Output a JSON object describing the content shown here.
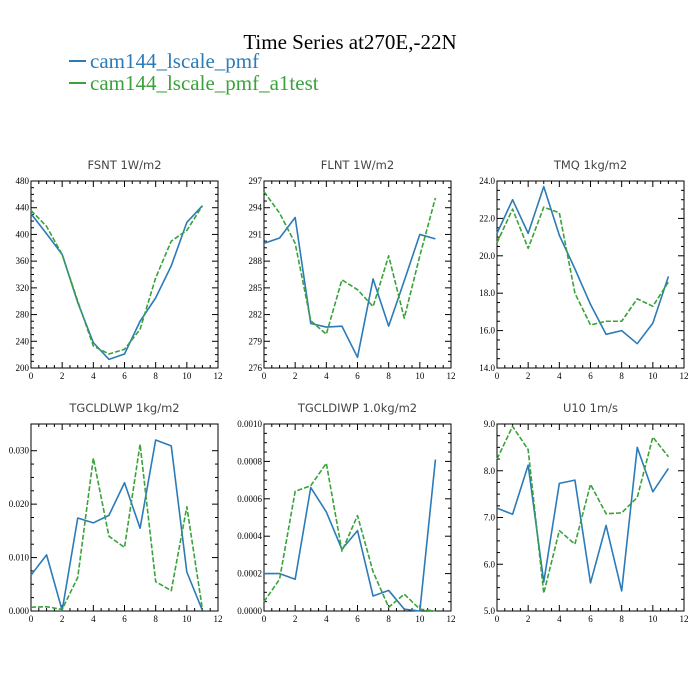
{
  "figure": {
    "title": "Time Series at270E,-22N",
    "legend": [
      {
        "label": "cam144_lscale_pmf",
        "color": "#2b7bb9",
        "dash": "solid"
      },
      {
        "label": "cam144_lscale_pmf_a1test",
        "color": "#3aa23a",
        "dash": "dashed"
      }
    ]
  },
  "chart_data": [
    {
      "type": "line",
      "title": "FSNT   1W/m2",
      "xlim": [
        0,
        12
      ],
      "ylim": [
        200,
        480
      ],
      "x_ticks": [
        0,
        2,
        4,
        6,
        8,
        10,
        12
      ],
      "y_ticks": [
        200,
        240,
        280,
        320,
        360,
        400,
        440,
        480
      ],
      "y_tick_labels": [
        "200",
        "240",
        "280",
        "320",
        "360",
        "400",
        "440",
        "480"
      ],
      "x": [
        0,
        1,
        2,
        3,
        4,
        5,
        6,
        7,
        8,
        9,
        10,
        11
      ],
      "series": [
        {
          "name": "cam144_lscale_pmf",
          "values": [
            431,
            401,
            370,
            298,
            238,
            213,
            221,
            270,
            305,
            353,
            418,
            443
          ]
        },
        {
          "name": "cam144_lscale_pmf_a1test",
          "values": [
            436,
            412,
            370,
            300,
            233,
            221,
            228,
            258,
            335,
            390,
            406,
            443
          ]
        }
      ]
    },
    {
      "type": "line",
      "title": "FLNT   1W/m2",
      "xlim": [
        0,
        12
      ],
      "ylim": [
        276,
        297
      ],
      "x_ticks": [
        0,
        2,
        4,
        6,
        8,
        10,
        12
      ],
      "y_ticks": [
        276,
        279,
        282,
        285,
        288,
        291,
        294,
        297
      ],
      "y_tick_labels": [
        "276",
        "279",
        "282",
        "285",
        "288",
        "291",
        "294",
        "297"
      ],
      "x": [
        0,
        1,
        2,
        3,
        4,
        5,
        6,
        7,
        8,
        9,
        10,
        11
      ],
      "series": [
        {
          "name": "cam144_lscale_pmf",
          "values": [
            290.0,
            290.6,
            292.9,
            281.0,
            280.6,
            280.7,
            277.2,
            286.0,
            280.7,
            285.8,
            291.0,
            290.5
          ]
        },
        {
          "name": "cam144_lscale_pmf_a1test",
          "values": [
            295.8,
            293.4,
            290.0,
            281.3,
            279.8,
            285.9,
            284.8,
            282.9,
            288.6,
            281.6,
            288.6,
            295.1
          ]
        }
      ]
    },
    {
      "type": "line",
      "title": "TMQ   1kg/m2",
      "xlim": [
        0,
        12
      ],
      "ylim": [
        14.0,
        24.0
      ],
      "x_ticks": [
        0,
        2,
        4,
        6,
        8,
        10,
        12
      ],
      "y_ticks": [
        14,
        16,
        18,
        20,
        22,
        24
      ],
      "y_tick_labels": [
        "14.0",
        "16.0",
        "18.0",
        "20.0",
        "22.0",
        "24.0"
      ],
      "x": [
        0,
        1,
        2,
        3,
        4,
        5,
        6,
        7,
        8,
        9,
        10,
        11
      ],
      "series": [
        {
          "name": "cam144_lscale_pmf",
          "values": [
            21.2,
            23.0,
            21.2,
            23.7,
            21.1,
            19.3,
            17.4,
            15.8,
            16.0,
            15.3,
            16.4,
            18.9
          ]
        },
        {
          "name": "cam144_lscale_pmf_a1test",
          "values": [
            20.7,
            22.5,
            20.4,
            22.6,
            22.3,
            18.0,
            16.3,
            16.5,
            16.5,
            17.7,
            17.3,
            18.6
          ]
        }
      ]
    },
    {
      "type": "line",
      "title": "TGCLDLWP   1kg/m2",
      "xlim": [
        0,
        12
      ],
      "ylim": [
        0,
        0.035
      ],
      "x_ticks": [
        0,
        2,
        4,
        6,
        8,
        10,
        12
      ],
      "y_ticks": [
        0,
        0.01,
        0.02,
        0.03
      ],
      "y_tick_labels": [
        "0.000",
        "0.010",
        "0.020",
        "0.030"
      ],
      "x": [
        0,
        1,
        2,
        3,
        4,
        5,
        6,
        7,
        8,
        9,
        10,
        11
      ],
      "series": [
        {
          "name": "cam144_lscale_pmf",
          "values": [
            0.0067,
            0.0105,
            0.0001,
            0.0174,
            0.0165,
            0.0179,
            0.024,
            0.0155,
            0.032,
            0.0309,
            0.0073,
            0.0001
          ]
        },
        {
          "name": "cam144_lscale_pmf_a1test",
          "values": [
            0.0007,
            0.0008,
            0.0003,
            0.0063,
            0.0286,
            0.014,
            0.0119,
            0.0312,
            0.0055,
            0.0038,
            0.0195,
            0.0003
          ]
        }
      ]
    },
    {
      "type": "line",
      "title": "TGCLDIWP   1.0kg/m2",
      "xlim": [
        0,
        12
      ],
      "ylim": [
        0,
        0.001
      ],
      "x_ticks": [
        0,
        2,
        4,
        6,
        8,
        10,
        12
      ],
      "y_ticks": [
        0,
        0.0002,
        0.0004,
        0.0006,
        0.0008,
        0.001
      ],
      "y_tick_labels": [
        "0.0000",
        "0.0002",
        "0.0004",
        "0.0006",
        "0.0008",
        "0.0010"
      ],
      "x": [
        0,
        1,
        2,
        3,
        4,
        5,
        6,
        7,
        8,
        9,
        10,
        11
      ],
      "series": [
        {
          "name": "cam144_lscale_pmf",
          "values": [
            0.0002,
            0.0002,
            0.00017,
            0.00066,
            0.00053,
            0.00033,
            0.00043,
            8e-05,
            0.00011,
            1e-05,
            0.0,
            0.00081
          ]
        },
        {
          "name": "cam144_lscale_pmf_a1test",
          "values": [
            5e-05,
            0.00017,
            0.00064,
            0.00067,
            0.00079,
            0.00032,
            0.00051,
            0.00021,
            2e-05,
            9e-05,
            1e-05,
            0.0
          ]
        }
      ]
    },
    {
      "type": "line",
      "title": "U10   1m/s",
      "xlim": [
        0,
        12
      ],
      "ylim": [
        5.0,
        9.0
      ],
      "x_ticks": [
        0,
        2,
        4,
        6,
        8,
        10,
        12
      ],
      "y_ticks": [
        5,
        6,
        7,
        8,
        9
      ],
      "y_tick_labels": [
        "5.0",
        "6.0",
        "7.0",
        "8.0",
        "9.0"
      ],
      "x": [
        0,
        1,
        2,
        3,
        4,
        5,
        6,
        7,
        8,
        9,
        10,
        11
      ],
      "series": [
        {
          "name": "cam144_lscale_pmf",
          "values": [
            7.2,
            7.07,
            8.12,
            5.62,
            7.73,
            7.8,
            5.6,
            6.83,
            5.43,
            8.5,
            7.55,
            8.05
          ]
        },
        {
          "name": "cam144_lscale_pmf_a1test",
          "values": [
            8.25,
            8.95,
            8.45,
            5.38,
            6.72,
            6.43,
            7.71,
            7.08,
            7.1,
            7.43,
            8.72,
            8.3
          ]
        }
      ]
    }
  ]
}
